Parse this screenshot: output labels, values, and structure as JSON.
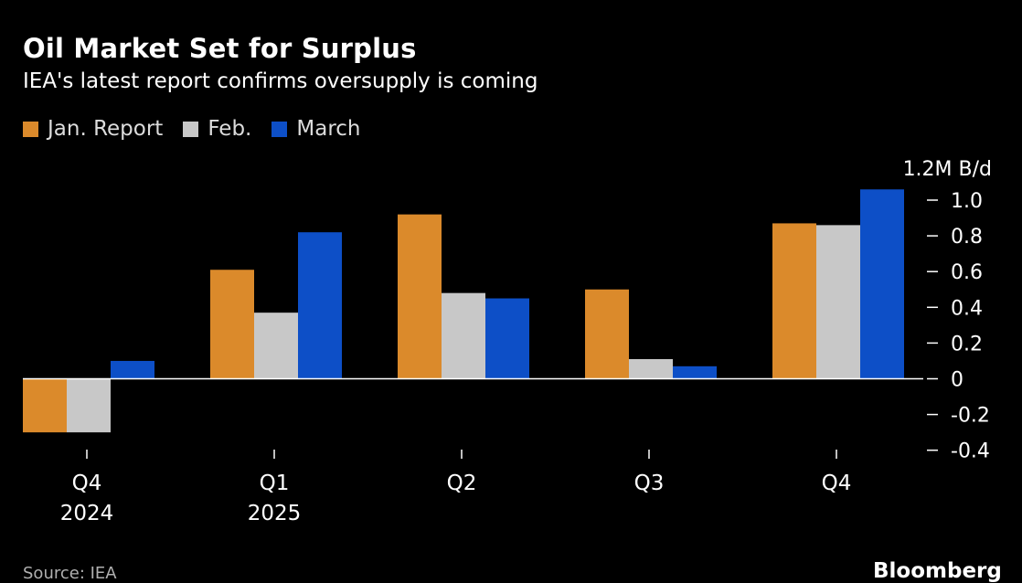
{
  "title": "Oil Market Set for Surplus",
  "subtitle": "IEA's latest report confirms oversupply is coming",
  "source": "Source: IEA",
  "brand": "Bloomberg",
  "colors": {
    "background": "#000000",
    "jan": "#db8a2b",
    "feb": "#c8c8c8",
    "march": "#0d4fc7",
    "axis": "#ffffff",
    "text": "#ffffff"
  },
  "chart_data": {
    "type": "bar",
    "categories": [
      "Q4\n2024",
      "Q1\n2025",
      "Q2",
      "Q3",
      "Q4"
    ],
    "series": [
      {
        "name": "Jan. Report",
        "color_key": "jan",
        "values": [
          -0.3,
          0.61,
          0.92,
          0.5,
          0.87
        ]
      },
      {
        "name": "Feb.",
        "color_key": "feb",
        "values": [
          -0.3,
          0.37,
          0.48,
          0.11,
          0.86
        ]
      },
      {
        "name": "March",
        "color_key": "march",
        "values": [
          0.1,
          0.82,
          0.45,
          0.07,
          1.06
        ]
      }
    ],
    "y_unit_label": "1.2M B/d",
    "y_ticks": [
      1.0,
      0.8,
      0.6,
      0.4,
      0.2,
      0,
      -0.2,
      -0.4
    ],
    "y_tick_labels": [
      "1.0",
      "0.8",
      "0.6",
      "0.4",
      "0.2",
      "0",
      "-0.2",
      "-0.4"
    ],
    "ylim": [
      -0.4,
      1.2
    ],
    "y_axis_position": "right",
    "legend_position": "top-left",
    "grid": false
  }
}
